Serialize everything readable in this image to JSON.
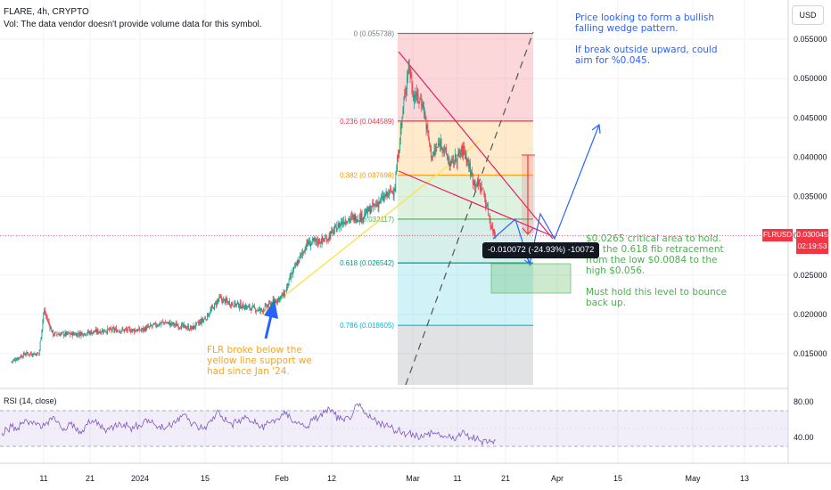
{
  "header": {
    "symbol_line": "FLARE, 4h, CRYPTO",
    "vol_line": "Vol: The data vendor doesn't provide volume data for this symbol."
  },
  "currency_button": "USD",
  "price_badge": {
    "ticker": "FLRUSD",
    "price": "0.030045",
    "countdown": "02:19:53"
  },
  "measure_label": "-0.010072 (-24.93%) -10072",
  "notes": {
    "wedge": "Price looking to form a bullish\nfalling wedge pattern.\n\nIf break outside upward, could\naim for %0.045.",
    "critical": "$0.0265 critical area to hold.\nIt's the 0.618 fib retracement\nfrom the low $0.0084 to the\nhigh $0.056.\n\nMust hold this level to bounce\nback up.",
    "support": "FLR broke below the\nyellow line support we\nhad since Jan '24."
  },
  "colors": {
    "up": "#089981",
    "down": "#f23645",
    "note_blue": "#2962ff",
    "note_green": "#4caf50",
    "note_orange": "#f5a623",
    "rsi_line": "#7e57c2",
    "price_line": "#f23645"
  },
  "chart_data": {
    "type": "candlestick",
    "interval": "4h",
    "symbol": "FLARE",
    "y_axis": {
      "ticks": [
        "0.055000",
        "0.050000",
        "0.045000",
        "0.040000",
        "0.035000",
        "0.030000",
        "0.025000",
        "0.020000",
        "0.015000"
      ],
      "scale": "linear"
    },
    "x_axis": {
      "ticks": [
        "11",
        "21",
        "2024",
        "15",
        "Feb",
        "12",
        "Mar",
        "11",
        "21",
        "Apr",
        "15",
        "May",
        "13"
      ]
    },
    "current_price": 0.030045,
    "close_path": [
      {
        "date": "2024-12-04",
        "close": 0.014
      },
      {
        "date": "2024-12-07",
        "close": 0.015
      },
      {
        "date": "2024-12-10",
        "close": 0.015
      },
      {
        "date": "2024-12-11",
        "close": 0.0205
      },
      {
        "date": "2024-12-13",
        "close": 0.0175
      },
      {
        "date": "2024-12-18",
        "close": 0.0175
      },
      {
        "date": "2024-12-25",
        "close": 0.018
      },
      {
        "date": "2025-01-01",
        "close": 0.018
      },
      {
        "date": "2025-01-06",
        "close": 0.019
      },
      {
        "date": "2025-01-12",
        "close": 0.0182
      },
      {
        "date": "2025-01-15",
        "close": 0.0195
      },
      {
        "date": "2025-01-18",
        "close": 0.022
      },
      {
        "date": "2025-01-20",
        "close": 0.0215
      },
      {
        "date": "2025-01-27",
        "close": 0.0205
      },
      {
        "date": "2025-02-01",
        "close": 0.0225
      },
      {
        "date": "2025-02-03",
        "close": 0.0255
      },
      {
        "date": "2025-02-06",
        "close": 0.029
      },
      {
        "date": "2025-02-10",
        "close": 0.0295
      },
      {
        "date": "2025-02-14",
        "close": 0.032
      },
      {
        "date": "2025-02-18",
        "close": 0.0325
      },
      {
        "date": "2025-02-22",
        "close": 0.0345
      },
      {
        "date": "2025-02-25",
        "close": 0.036
      },
      {
        "date": "2025-02-26",
        "close": 0.042
      },
      {
        "date": "2025-02-28",
        "close": 0.052
      },
      {
        "date": "2025-03-01",
        "close": 0.048
      },
      {
        "date": "2025-03-03",
        "close": 0.047
      },
      {
        "date": "2025-03-05",
        "close": 0.04
      },
      {
        "date": "2025-03-07",
        "close": 0.042
      },
      {
        "date": "2025-03-09",
        "close": 0.039
      },
      {
        "date": "2025-03-12",
        "close": 0.041
      },
      {
        "date": "2025-03-14",
        "close": 0.037
      },
      {
        "date": "2025-03-16",
        "close": 0.036
      },
      {
        "date": "2025-03-18",
        "close": 0.031
      },
      {
        "date": "2025-03-19",
        "close": 0.03
      }
    ],
    "fibonacci": [
      {
        "ratio": "0",
        "price": "0.055738",
        "color": "#787b86"
      },
      {
        "ratio": "0.236",
        "price": "0.044589",
        "color": "#f23645"
      },
      {
        "ratio": "0.382",
        "price": "0.037698",
        "color": "#ff9800"
      },
      {
        "ratio": "0.5",
        "price": "0.032117",
        "color": "#4caf50"
      },
      {
        "ratio": "0.618",
        "price": "0.026542",
        "color": "#089981"
      },
      {
        "ratio": "0.786",
        "price": "0.018605",
        "color": "#00bcd4"
      }
    ],
    "rsi": {
      "label": "RSI (14, close)",
      "ticks": [
        "80.00",
        "40.00"
      ],
      "band": [
        30,
        70
      ],
      "values": [
        45,
        50,
        52,
        48,
        55,
        60,
        58,
        54,
        50,
        56,
        62,
        58,
        52,
        48,
        55,
        50,
        47,
        52,
        56,
        58,
        54,
        50,
        49,
        53,
        57,
        55,
        52,
        50,
        54,
        58,
        60,
        56,
        52,
        50,
        53,
        57,
        62,
        66,
        60,
        55,
        52,
        50,
        54,
        58,
        70,
        64,
        58,
        55,
        57,
        60,
        62,
        58,
        55,
        52,
        54,
        57,
        60,
        63,
        66,
        62,
        58,
        55,
        52,
        56,
        60,
        64,
        68,
        72,
        66,
        60,
        58,
        62,
        70,
        75,
        68,
        62,
        60,
        58,
        55,
        52,
        50,
        48,
        46,
        44,
        45,
        42,
        40,
        43,
        46,
        44,
        42,
        40,
        38,
        41,
        44,
        42,
        40,
        38,
        36,
        38,
        35,
        37
      ]
    }
  }
}
